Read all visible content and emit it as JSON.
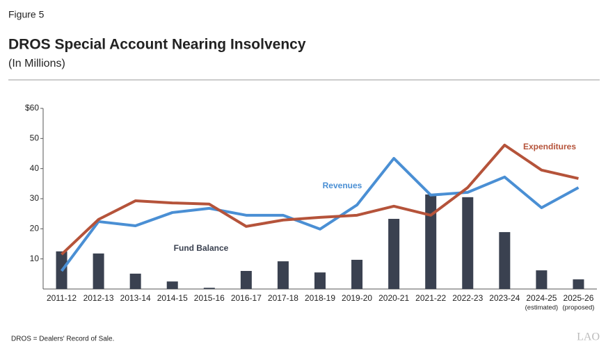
{
  "figure_label": "Figure 5",
  "note": "DROS = Dealers' Record of Sale.",
  "logo": "LAO",
  "chart_data": {
    "type": "combo",
    "title": "DROS Special Account Nearing Insolvency",
    "subtitle": "(In Millions)",
    "categories": [
      "2011-12",
      "2012-13",
      "2013-14",
      "2014-15",
      "2015-16",
      "2016-17",
      "2017-18",
      "2018-19",
      "2019-20",
      "2020-21",
      "2021-22",
      "2022-23",
      "2023-24",
      "2024-25",
      "2025-26"
    ],
    "category_sublabels": [
      null,
      null,
      null,
      null,
      null,
      null,
      null,
      null,
      null,
      null,
      null,
      null,
      null,
      "(estimated)",
      "(proposed)"
    ],
    "ylim": [
      0,
      60
    ],
    "yticks": [
      10,
      20,
      30,
      40,
      50,
      {
        "value": 60,
        "label": "$60"
      }
    ],
    "grid": false,
    "series": [
      {
        "name": "Fund Balance",
        "type": "bar",
        "color": "#3a4150",
        "values": [
          12.5,
          11.8,
          5.1,
          2.5,
          0.4,
          6.0,
          9.2,
          5.5,
          9.7,
          23.3,
          31.4,
          30.5,
          18.9,
          6.2,
          3.2
        ]
      },
      {
        "name": "Revenues",
        "type": "line",
        "color": "#4a8fd4",
        "values": [
          6.0,
          22.4,
          21.0,
          25.4,
          26.8,
          24.5,
          24.5,
          19.9,
          27.9,
          43.4,
          31.2,
          32.1,
          37.2,
          27.0,
          33.7
        ]
      },
      {
        "name": "Expenditures",
        "type": "line",
        "color": "#b5533a",
        "values": [
          11.5,
          23.1,
          29.3,
          28.6,
          28.2,
          20.8,
          22.9,
          23.8,
          24.5,
          27.5,
          24.5,
          33.7,
          47.8,
          39.5,
          36.7
        ]
      }
    ]
  }
}
